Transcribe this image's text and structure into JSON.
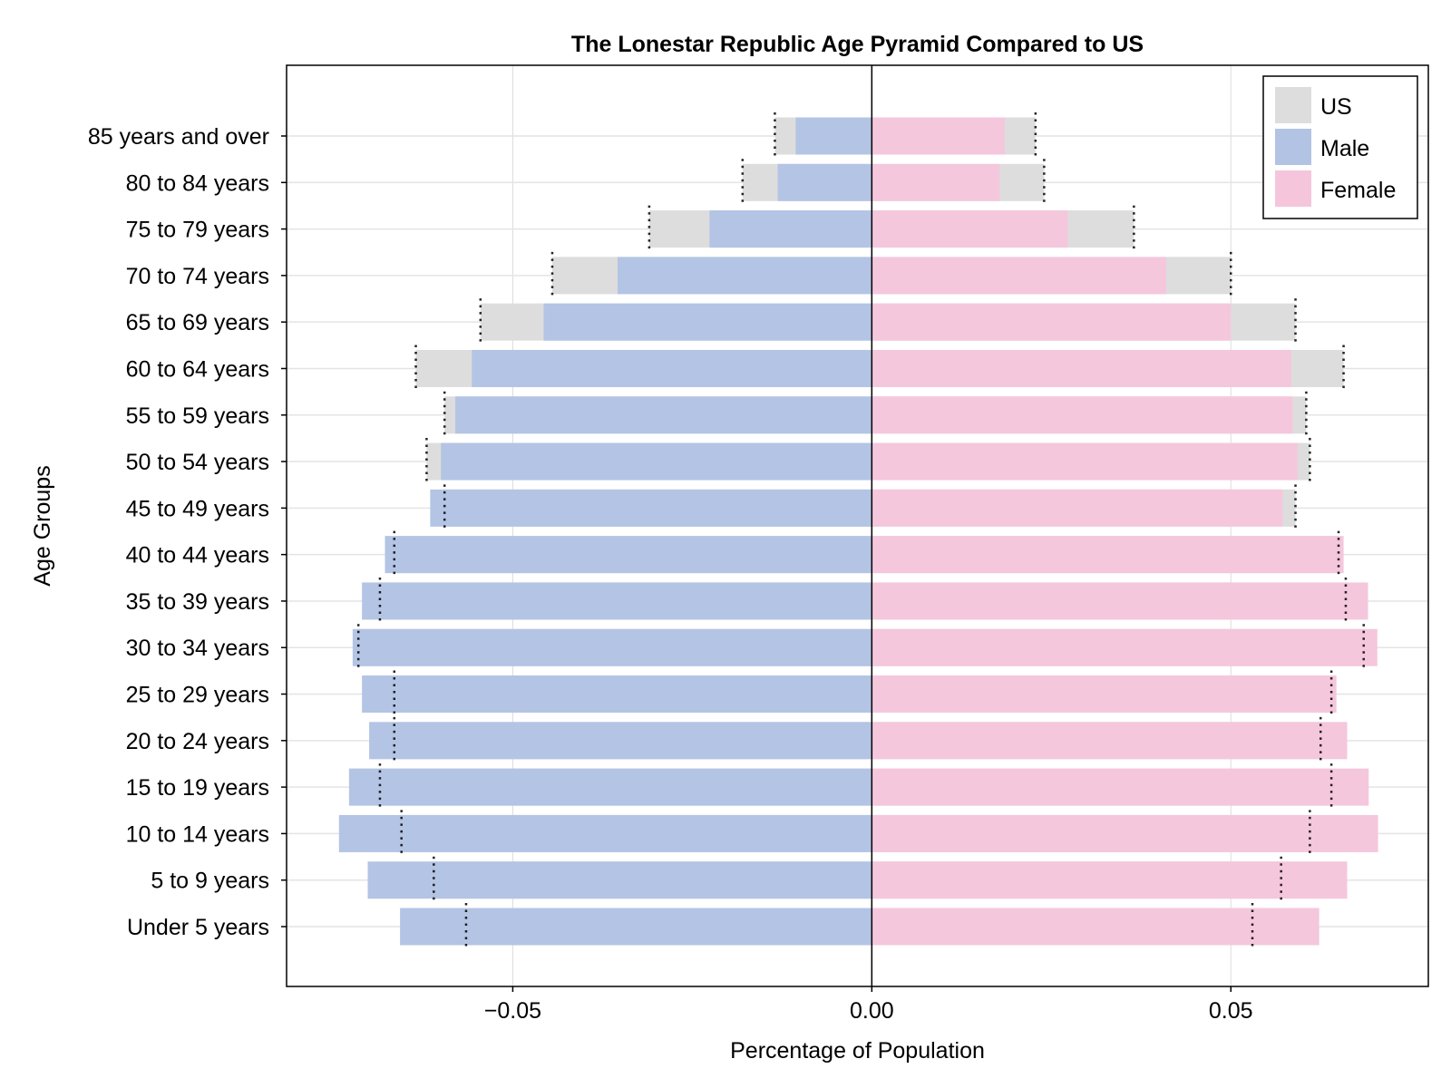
{
  "chart_data": {
    "type": "bar",
    "orientation": "horizontal",
    "title": "The Lonestar Republic Age Pyramid Compared to US",
    "xlabel": "Percentage of Population",
    "ylabel": "Age Groups",
    "xlim": [
      -0.0815,
      0.0775
    ],
    "xticks": [
      -0.05,
      0.0,
      0.05
    ],
    "xtick_labels": [
      "−0.05",
      "0.00",
      "0.05"
    ],
    "grid": true,
    "legend_position": "top-right",
    "categories": [
      "Under 5 years",
      "5 to 9 years",
      "10 to 14 years",
      "15 to 19 years",
      "20 to 24 years",
      "25 to 29 years",
      "30 to 34 years",
      "35 to 39 years",
      "40 to 44 years",
      "45 to 49 years",
      "50 to 54 years",
      "55 to 59 years",
      "60 to 64 years",
      "65 to 69 years",
      "70 to 74 years",
      "75 to 79 years",
      "80 to 84 years",
      "85 years and over"
    ],
    "series": [
      {
        "name": "US",
        "color": "#dddddd",
        "male": [
          -0.0565,
          -0.061,
          -0.0655,
          -0.0685,
          -0.0665,
          -0.0665,
          -0.0715,
          -0.0685,
          -0.0665,
          -0.0595,
          -0.062,
          -0.0595,
          -0.0635,
          -0.0545,
          -0.0445,
          -0.031,
          -0.018,
          -0.0135
        ],
        "female": [
          0.053,
          0.057,
          0.061,
          0.064,
          0.0625,
          0.064,
          0.0685,
          0.066,
          0.065,
          0.059,
          0.061,
          0.0605,
          0.0657,
          0.059,
          0.05,
          0.0365,
          0.024,
          0.0228
        ]
      },
      {
        "name": "Male",
        "color": "#b3c3e3",
        "values": [
          -0.0657,
          -0.0702,
          -0.0742,
          -0.0728,
          -0.07,
          -0.071,
          -0.0723,
          -0.071,
          -0.0678,
          -0.0615,
          -0.06,
          -0.058,
          -0.0557,
          -0.0457,
          -0.0354,
          -0.0226,
          -0.0131,
          -0.0106
        ]
      },
      {
        "name": "Female",
        "color": "#f5c6db",
        "values": [
          0.0623,
          0.0662,
          0.0705,
          0.0692,
          0.0662,
          0.0647,
          0.0704,
          0.0691,
          0.0657,
          0.0572,
          0.0593,
          0.0586,
          0.0584,
          0.05,
          0.041,
          0.0273,
          0.0178,
          0.0185
        ]
      }
    ]
  }
}
